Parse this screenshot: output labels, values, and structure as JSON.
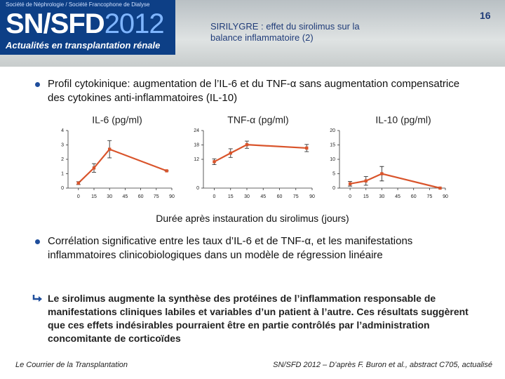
{
  "header": {
    "society": "Société de Néphrologie / Société Francophone de Dialyse",
    "brand": "SN/SFD",
    "year": "2012",
    "tagline": "Actualités en transplantation rénale",
    "title": "SIRILYGRE : effet du sirolimus sur la balance inflammatoire (2)",
    "page": "16"
  },
  "bullets": [
    "Profil cytokinique: augmentation de l’IL-6 et du TNF-α sans augmentation compensatrice des cytokines anti-inflammatoires (IL-10)",
    "Corrélation significative entre les taux d’IL-6 et de TNF-α, et les manifestations inflammatoires clinicobiologiques dans un modèle de régression linéaire",
    "Le sirolimus augmente la synthèse des protéines de l’inflammation responsable de manifestations cliniques labiles et variables d’un patient à l’autre. Ces résultats suggèrent que ces effets indésirables pourraient être en partie contrôlés par l’administration concomitante de corticoïdes"
  ],
  "x_axis_label": "Durée après instauration du sirolimus (jours)",
  "chart_data": [
    {
      "type": "line",
      "title": "IL-6 (pg/ml)",
      "x": [
        0,
        15,
        30,
        85
      ],
      "series": [
        {
          "color": "#d9542b",
          "values": [
            0.35,
            1.4,
            2.7,
            1.2
          ],
          "errors": [
            0.1,
            0.3,
            0.6,
            0
          ]
        }
      ],
      "xlim": [
        -10,
        90
      ],
      "xticks": [
        0,
        15,
        30,
        45,
        60,
        75,
        90
      ],
      "ylim": [
        0,
        4
      ],
      "yticks": [
        0,
        1,
        2,
        3,
        4
      ]
    },
    {
      "type": "line",
      "title": "TNF-α (pg/ml)",
      "x": [
        0,
        15,
        30,
        85
      ],
      "series": [
        {
          "color": "#d9542b",
          "values": [
            11,
            14.6,
            18.1,
            16.7
          ],
          "errors": [
            1.2,
            1.8,
            1.5,
            1.5
          ]
        }
      ],
      "xlim": [
        -10,
        90
      ],
      "xticks": [
        0,
        15,
        30,
        45,
        60,
        75,
        90
      ],
      "ylim": [
        0,
        24
      ],
      "yticks": [
        0,
        12,
        18,
        24
      ]
    },
    {
      "type": "line",
      "title": "IL-10 (pg/ml)",
      "x": [
        0,
        15,
        30,
        85
      ],
      "series": [
        {
          "color": "#d9542b",
          "values": [
            1.5,
            2.5,
            5,
            0
          ],
          "errors": [
            0.8,
            1.5,
            2.5,
            0
          ]
        }
      ],
      "xlim": [
        -10,
        90
      ],
      "xticks": [
        0,
        15,
        30,
        45,
        60,
        75,
        90
      ],
      "ylim": [
        0,
        20
      ],
      "yticks": [
        0,
        5,
        10,
        15,
        20
      ]
    }
  ],
  "footer": {
    "left": "Le Courrier de la Transplantation",
    "right": "SN/SFD 2012 – D’après F. Buron et al., abstract C705, actualisé"
  }
}
